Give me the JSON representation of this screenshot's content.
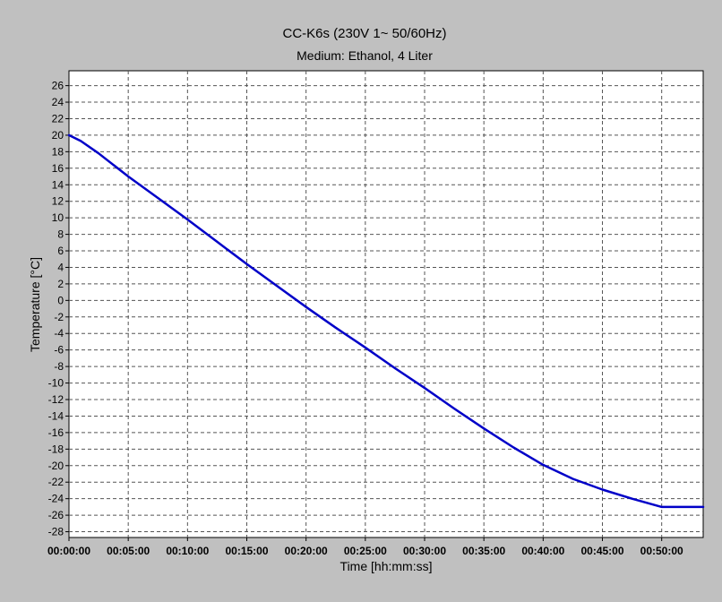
{
  "chart_data": {
    "type": "line",
    "title": "CC-K6s (230V 1~ 50/60Hz)",
    "subtitle": "Medium: Ethanol, 4 Liter",
    "xlabel": "Time [hh:mm:ss]",
    "ylabel": "Temperature [°C]",
    "x_unit": "hh:mm:ss",
    "xlim": [
      "00:00:00",
      "00:53:30"
    ],
    "ylim": [
      -28.7,
      27.8
    ],
    "x_ticks": [
      "00:00:00",
      "00:05:00",
      "00:10:00",
      "00:15:00",
      "00:20:00",
      "00:25:00",
      "00:30:00",
      "00:35:00",
      "00:40:00",
      "00:45:00",
      "00:50:00"
    ],
    "y_ticks": [
      26,
      24,
      22,
      20,
      18,
      16,
      14,
      12,
      10,
      8,
      6,
      4,
      2,
      0,
      -2,
      -4,
      -6,
      -8,
      -10,
      -12,
      -14,
      -16,
      -18,
      -20,
      -22,
      -24,
      -26,
      -28
    ],
    "grid": true,
    "colors": {
      "background": "#c0c0c0",
      "plot_area": "#ffffff",
      "grid": "#555555",
      "line": "#0000c8"
    },
    "series": [
      {
        "x": [
          "00:00:00",
          "00:01:00",
          "00:02:30",
          "00:05:00",
          "00:07:30",
          "00:10:00",
          "00:12:30",
          "00:15:00",
          "00:17:30",
          "00:20:00",
          "00:22:30",
          "00:25:00",
          "00:27:30",
          "00:30:00",
          "00:32:30",
          "00:35:00",
          "00:37:30",
          "00:40:00",
          "00:42:30",
          "00:45:00",
          "00:47:30",
          "00:50:00",
          "00:51:00",
          "00:52:00",
          "00:53:30"
        ],
        "values": [
          20.0,
          19.3,
          17.8,
          15.0,
          12.4,
          9.8,
          7.1,
          4.4,
          1.8,
          -0.8,
          -3.3,
          -5.7,
          -8.2,
          -10.6,
          -13.1,
          -15.5,
          -17.8,
          -19.9,
          -21.6,
          -22.9,
          -24.0,
          -25.0,
          -25.0,
          -25.0,
          -25.0
        ]
      }
    ]
  }
}
